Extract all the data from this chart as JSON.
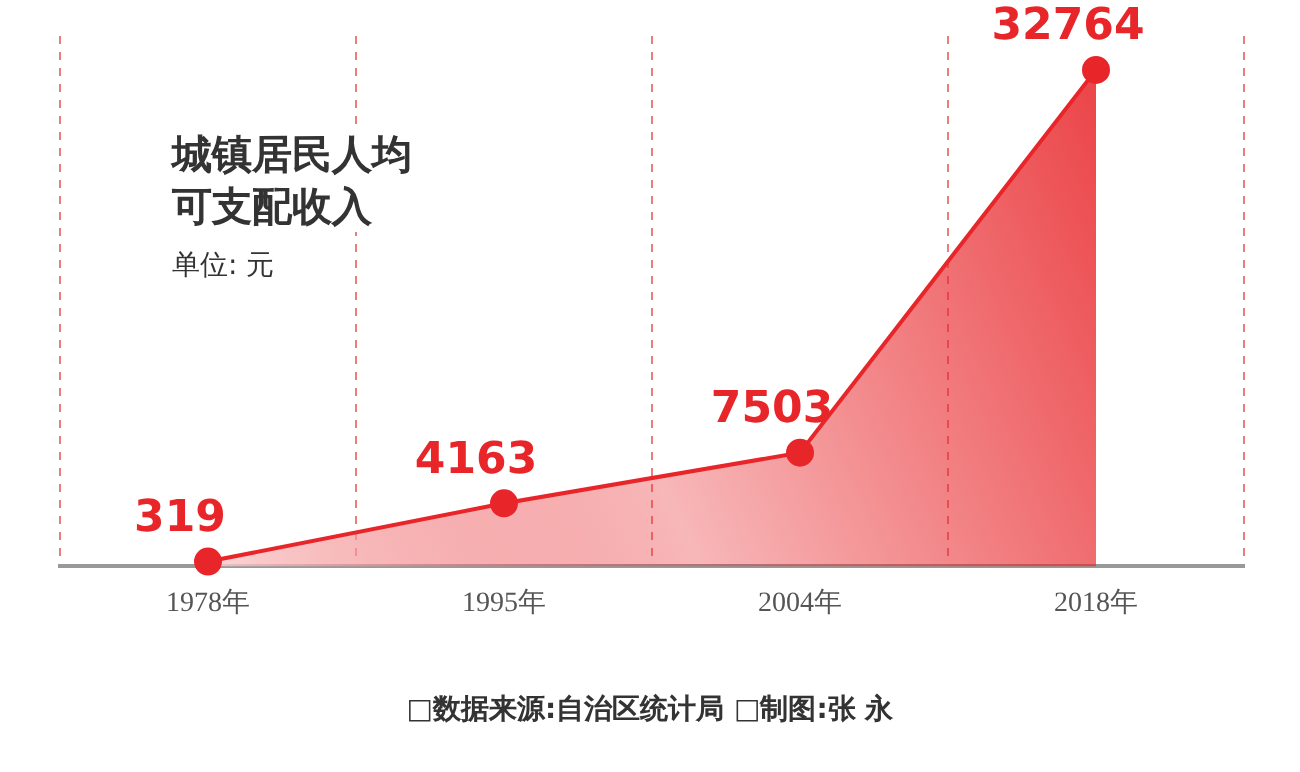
{
  "chart_data": {
    "type": "area",
    "title": "城镇居民人均可支配收入",
    "subtitle": "单位: 元",
    "categories": [
      "1978年",
      "1995年",
      "2004年",
      "2018年"
    ],
    "series": [
      {
        "color": "#e8262a",
        "values": [
          319,
          4163,
          7503,
          32764
        ]
      }
    ],
    "data_labels": true,
    "grid": "x",
    "legend": false,
    "marker": "circle",
    "annotations": [
      "□数据来源:自治区统计局  □制图:张 永"
    ]
  }
}
